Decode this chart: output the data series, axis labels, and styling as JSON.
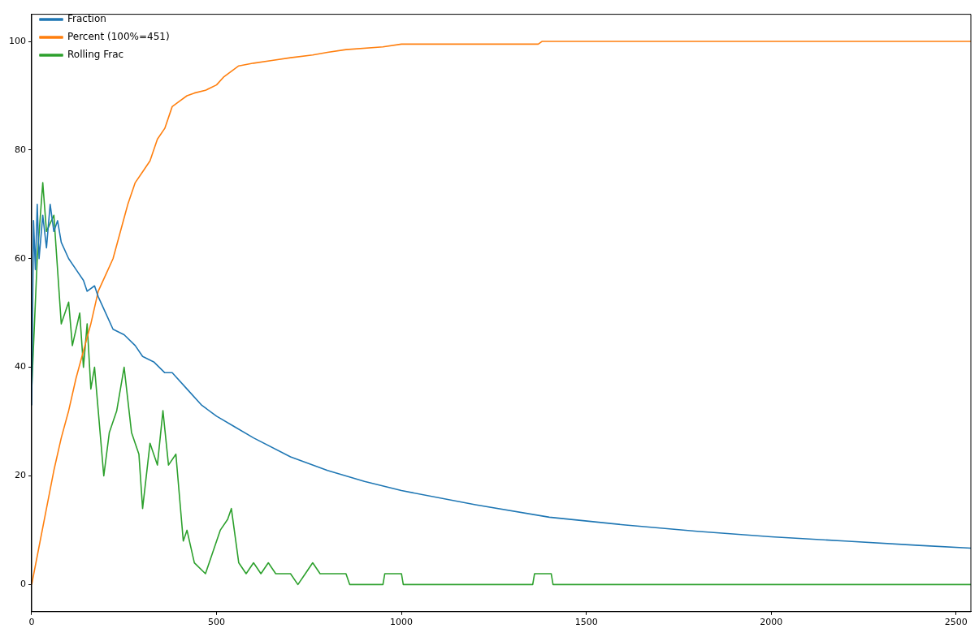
{
  "chart_data": {
    "type": "line",
    "xlim": [
      0,
      2540
    ],
    "ylim": [
      -5,
      105
    ],
    "xticks": [
      0,
      500,
      1000,
      1500,
      2000,
      2500
    ],
    "yticks": [
      0,
      20,
      40,
      60,
      80,
      100
    ],
    "grid": false,
    "legend": "top left",
    "marker": "none",
    "line_style": "solid",
    "series": [
      {
        "name": "Fraction",
        "color": "#1f77b4",
        "x": [
          0,
          5,
          10,
          15,
          20,
          30,
          40,
          50,
          60,
          70,
          80,
          100,
          120,
          140,
          150,
          170,
          180,
          200,
          220,
          250,
          280,
          300,
          330,
          360,
          380,
          420,
          460,
          500,
          550,
          600,
          700,
          800,
          900,
          1000,
          1200,
          1400,
          1600,
          1800,
          2000,
          2200,
          2400,
          2540
        ],
        "values": [
          33,
          67,
          58,
          70,
          60,
          68,
          62,
          70,
          65,
          67,
          63,
          60,
          58,
          56,
          54,
          55,
          53,
          50,
          47,
          46,
          44,
          42,
          41,
          39,
          39,
          36,
          33,
          31,
          29,
          27,
          23.5,
          21,
          19,
          17.3,
          14.7,
          12.4,
          11,
          9.8,
          8.8,
          8,
          7.2,
          6.7
        ]
      },
      {
        "name": "Percent (100%=451)",
        "color": "#ff7f0e",
        "x": [
          0,
          20,
          40,
          60,
          80,
          100,
          120,
          140,
          160,
          180,
          200,
          220,
          240,
          260,
          280,
          300,
          320,
          340,
          360,
          380,
          400,
          420,
          440,
          470,
          500,
          520,
          540,
          560,
          600,
          650,
          700,
          760,
          800,
          850,
          950,
          1000,
          1370,
          1380,
          2540
        ],
        "values": [
          0,
          7,
          14,
          21,
          27,
          32,
          38,
          43,
          48,
          54,
          57,
          60,
          65,
          70,
          74,
          76,
          78,
          82,
          84,
          88,
          89,
          90,
          90.5,
          91,
          92,
          93.5,
          94.5,
          95.5,
          96,
          96.5,
          97,
          97.5,
          98,
          98.5,
          99,
          99.5,
          99.5,
          100,
          100
        ]
      },
      {
        "name": "Rolling Frac",
        "color": "#2ca02c",
        "x": [
          0,
          15,
          30,
          40,
          60,
          80,
          100,
          110,
          130,
          140,
          150,
          160,
          170,
          180,
          195,
          210,
          230,
          250,
          270,
          290,
          300,
          320,
          340,
          355,
          370,
          390,
          400,
          410,
          420,
          440,
          470,
          490,
          510,
          530,
          540,
          560,
          580,
          600,
          620,
          640,
          660,
          700,
          720,
          740,
          760,
          780,
          850,
          860,
          950,
          955,
          1000,
          1005,
          1355,
          1360,
          1405,
          1410,
          2540
        ],
        "values": [
          36,
          60,
          74,
          65,
          68,
          48,
          52,
          44,
          50,
          40,
          48,
          36,
          40,
          32,
          20,
          28,
          32,
          40,
          28,
          24,
          14,
          26,
          22,
          32,
          22,
          24,
          16,
          8,
          10,
          4,
          2,
          6,
          10,
          12,
          14,
          4,
          2,
          4,
          2,
          4,
          2,
          2,
          0,
          2,
          4,
          2,
          2,
          0,
          0,
          2,
          2,
          0,
          0,
          2,
          2,
          0,
          0
        ]
      }
    ]
  }
}
